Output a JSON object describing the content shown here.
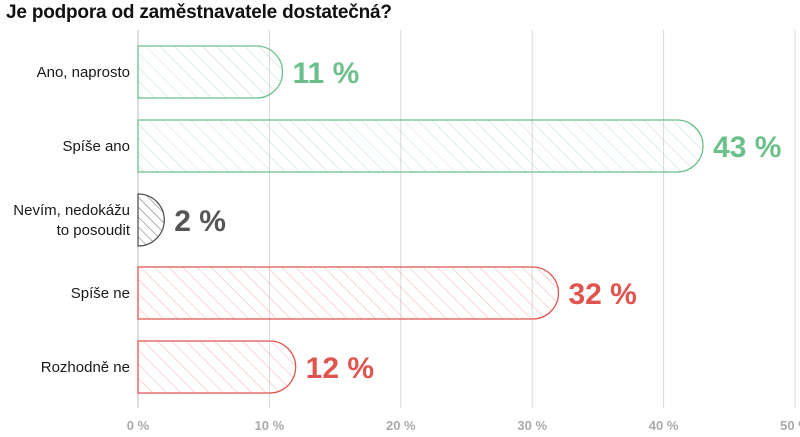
{
  "chart_data": {
    "type": "bar",
    "orientation": "horizontal",
    "title": "Je podpora od zaměstnavatele dostatečná?",
    "categories": [
      [
        "Ano, naprosto"
      ],
      [
        "Spíše ano"
      ],
      [
        "Nevím, nedokážu",
        "to posoudit"
      ],
      [
        "Spíše ne"
      ],
      [
        "Rozhodně ne"
      ]
    ],
    "values": [
      11,
      43,
      2,
      32,
      12
    ],
    "value_labels": [
      "11 %",
      "43 %",
      "2 %",
      "32 %",
      "12 %"
    ],
    "x_ticks": [
      0,
      10,
      20,
      30,
      40,
      50
    ],
    "x_tick_labels": [
      "0 %",
      "10 %",
      "20 %",
      "30 %",
      "40 %",
      "50 %"
    ],
    "xlim": [
      0,
      50
    ],
    "grid": true,
    "legend": "none",
    "colors": {
      "positive": "#6cc08b",
      "neutral": "#555555",
      "negative": "#e0544f",
      "grid": "#d9d9d9",
      "tick_label": "#aaaaaa"
    },
    "bar_color_groups": [
      "positive",
      "positive",
      "neutral",
      "negative",
      "negative"
    ]
  }
}
